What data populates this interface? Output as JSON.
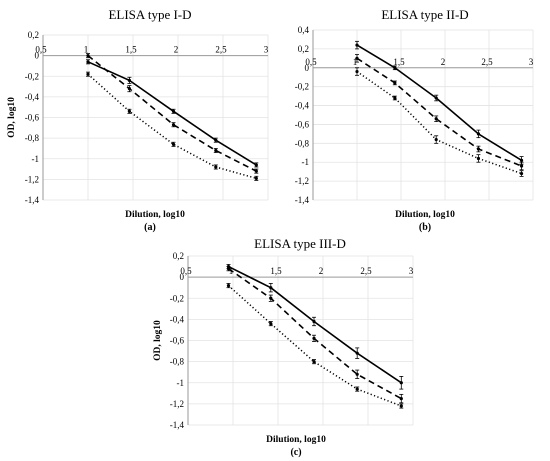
{
  "chart_data": [
    {
      "type": "line",
      "panel_label": "(a)",
      "title": "ELISA type I-D",
      "xlabel": "Dilution, log10",
      "ylabel": "OD, log10",
      "xlim": [
        0.5,
        3
      ],
      "ylim": [
        -1.4,
        0.2
      ],
      "x_ticks": [
        "0,5",
        "1",
        "1,5",
        "2",
        "2,5",
        "3"
      ],
      "y_ticks": [
        "0,2",
        "0",
        "-0,2",
        "-0,4",
        "-0,6",
        "-0,8",
        "-1",
        "-1,2",
        "-1,4"
      ],
      "series": [
        {
          "style": "solid",
          "points": [
            [
              1.0,
              -0.06
            ],
            [
              1.46,
              -0.24
            ],
            [
              1.95,
              -0.54
            ],
            [
              2.42,
              -0.82
            ],
            [
              2.87,
              -1.06
            ]
          ],
          "errors": [
            0.02,
            0.03,
            0.02,
            0.02,
            0.02
          ]
        },
        {
          "style": "dashed",
          "points": [
            [
              1.0,
              0.0
            ],
            [
              1.46,
              -0.32
            ],
            [
              1.95,
              -0.67
            ],
            [
              2.42,
              -0.92
            ],
            [
              2.87,
              -1.12
            ]
          ],
          "errors": [
            0.02,
            0.03,
            0.02,
            0.02,
            0.02
          ]
        },
        {
          "style": "dotted",
          "points": [
            [
              1.0,
              -0.18
            ],
            [
              1.46,
              -0.54
            ],
            [
              1.95,
              -0.86
            ],
            [
              2.42,
              -1.08
            ],
            [
              2.87,
              -1.19
            ]
          ],
          "errors": [
            0.02,
            0.02,
            0.02,
            0.02,
            0.02
          ]
        }
      ]
    },
    {
      "type": "line",
      "panel_label": "(b)",
      "title": "ELISA type II-D",
      "xlabel": "Dilution, log10",
      "ylabel": "",
      "xlim": [
        0.5,
        3
      ],
      "ylim": [
        -1.4,
        0.4
      ],
      "x_ticks": [
        "0,5",
        "1",
        "1,5",
        "2",
        "2,5",
        "3"
      ],
      "y_ticks": [
        "0,4",
        "0,2",
        "0",
        "-0,2",
        "-0,4",
        "-0,6",
        "-0,8",
        "-1",
        "-1,2",
        "-1,4"
      ],
      "series": [
        {
          "style": "solid",
          "points": [
            [
              1.0,
              0.24
            ],
            [
              1.43,
              0.0
            ],
            [
              1.9,
              -0.32
            ],
            [
              2.38,
              -0.7
            ],
            [
              2.87,
              -0.98
            ]
          ],
          "errors": [
            0.04,
            0.02,
            0.03,
            0.04,
            0.04
          ]
        },
        {
          "style": "dashed",
          "points": [
            [
              1.0,
              0.1
            ],
            [
              1.43,
              -0.16
            ],
            [
              1.9,
              -0.54
            ],
            [
              2.38,
              -0.86
            ],
            [
              2.87,
              -1.04
            ]
          ],
          "errors": [
            0.04,
            0.02,
            0.03,
            0.03,
            0.04
          ]
        },
        {
          "style": "dotted",
          "points": [
            [
              1.0,
              -0.04
            ],
            [
              1.43,
              -0.32
            ],
            [
              1.9,
              -0.76
            ],
            [
              2.38,
              -0.96
            ],
            [
              2.87,
              -1.12
            ]
          ],
          "errors": [
            0.04,
            0.02,
            0.04,
            0.04,
            0.03
          ]
        }
      ]
    },
    {
      "type": "line",
      "panel_label": "(c)",
      "title": "ELISA type III-D",
      "xlabel": "Dilution, log10",
      "ylabel": "OD, log10",
      "xlim": [
        0.5,
        3
      ],
      "ylim": [
        -1.4,
        0.2
      ],
      "x_ticks": [
        "0,5",
        "1",
        "1,5",
        "2",
        "2,5",
        "3"
      ],
      "y_ticks": [
        "0,2",
        "0",
        "-0,2",
        "-0,4",
        "-0,6",
        "-0,8",
        "-1",
        "-1,2",
        "-1,4"
      ],
      "series": [
        {
          "style": "solid",
          "points": [
            [
              0.95,
              0.1
            ],
            [
              1.42,
              -0.1
            ],
            [
              1.9,
              -0.42
            ],
            [
              2.38,
              -0.72
            ],
            [
              2.87,
              -1.0
            ]
          ],
          "errors": [
            0.02,
            0.04,
            0.04,
            0.05,
            0.06
          ]
        },
        {
          "style": "dashed",
          "points": [
            [
              0.95,
              0.08
            ],
            [
              1.42,
              -0.2
            ],
            [
              1.9,
              -0.58
            ],
            [
              2.38,
              -0.92
            ],
            [
              2.87,
              -1.15
            ]
          ],
          "errors": [
            0.02,
            0.03,
            0.03,
            0.04,
            0.04
          ]
        },
        {
          "style": "dotted",
          "points": [
            [
              0.95,
              -0.08
            ],
            [
              1.42,
              -0.44
            ],
            [
              1.9,
              -0.8
            ],
            [
              2.38,
              -1.06
            ],
            [
              2.87,
              -1.22
            ]
          ],
          "errors": [
            0.02,
            0.02,
            0.02,
            0.02,
            0.02
          ]
        }
      ]
    }
  ]
}
